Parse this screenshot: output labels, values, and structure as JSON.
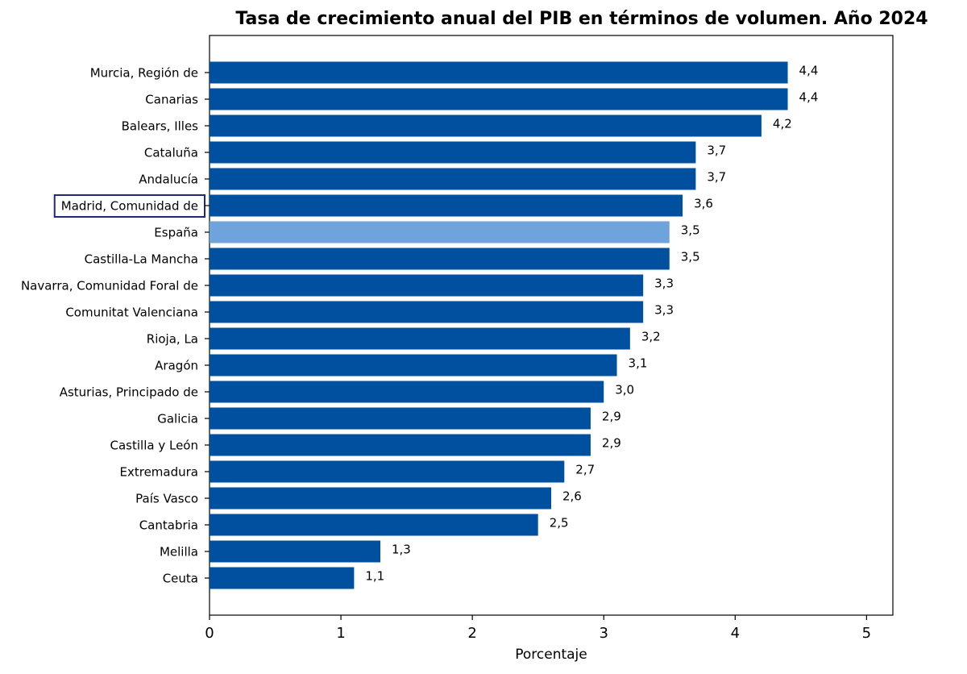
{
  "chart_data": {
    "type": "barh",
    "title": "Tasa de crecimiento anual del PIB en términos de volumen. Año 2024",
    "xlabel": "Porcentaje",
    "categories": [
      "Murcia, Región de",
      "Canarias",
      "Balears, Illes",
      "Cataluña",
      "Andalucía",
      "Madrid, Comunidad de",
      "España",
      "Castilla-La Mancha",
      "Navarra, Comunidad Foral de",
      "Comunitat Valenciana",
      "Rioja, La",
      "Aragón",
      "Asturias, Principado de",
      "Galicia",
      "Castilla y León",
      "Extremadura",
      "País Vasco",
      "Cantabria",
      "Melilla",
      "Ceuta"
    ],
    "values": [
      4.4,
      4.4,
      4.2,
      3.7,
      3.7,
      3.6,
      3.5,
      3.5,
      3.3,
      3.3,
      3.2,
      3.1,
      3.0,
      2.9,
      2.9,
      2.7,
      2.6,
      2.5,
      1.3,
      1.1
    ],
    "value_labels": [
      "4,4",
      "4,4",
      "4,2",
      "3,7",
      "3,7",
      "3,6",
      "3,5",
      "3,5",
      "3,3",
      "3,3",
      "3,2",
      "3,1",
      "3,0",
      "2,9",
      "2,9",
      "2,7",
      "2,6",
      "2,5",
      "1,3",
      "1,1"
    ],
    "colors": [
      "#0050a0",
      "#0050a0",
      "#0050a0",
      "#0050a0",
      "#0050a0",
      "#0050a0",
      "#6fa3db",
      "#0050a0",
      "#0050a0",
      "#0050a0",
      "#0050a0",
      "#0050a0",
      "#0050a0",
      "#0050a0",
      "#0050a0",
      "#0050a0",
      "#0050a0",
      "#0050a0",
      "#0050a0",
      "#0050a0"
    ],
    "highlight": {
      "category_index": 5,
      "color": "#1f2a7a"
    },
    "xlim": [
      0,
      5.2
    ],
    "xticks": [
      0,
      1,
      2,
      3,
      4,
      5
    ],
    "grid": false
  }
}
